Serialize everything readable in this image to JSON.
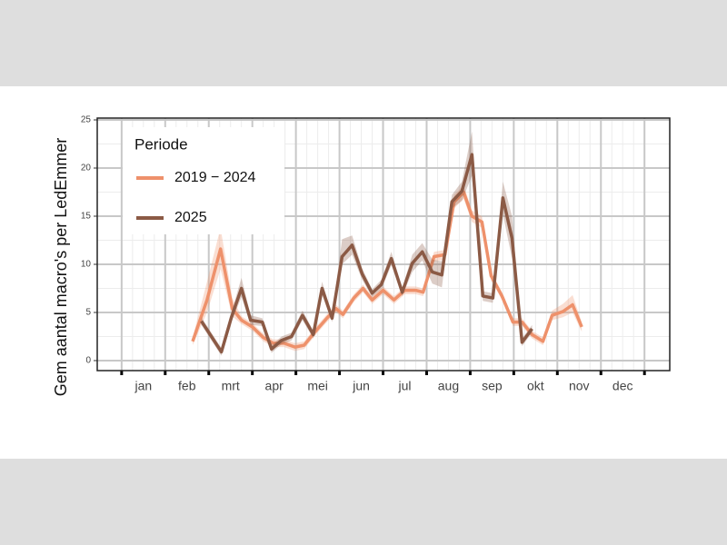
{
  "chart_data": {
    "type": "line",
    "ylabel": "Gem aantal macro's per LedEmmer",
    "legend_title": "Periode",
    "legend": "top-left",
    "grid": true,
    "categories": [
      "jan",
      "feb",
      "mrt",
      "apr",
      "mei",
      "jun",
      "jul",
      "aug",
      "sep",
      "okt",
      "nov",
      "dec"
    ],
    "xlim": [
      -0.56,
      12.58
    ],
    "xticks": [
      0,
      1,
      2,
      3,
      4,
      5,
      6,
      7,
      8,
      9,
      10,
      11,
      12
    ],
    "ylim": [
      -1.04,
      25.19
    ],
    "yticks": [
      0,
      5,
      10,
      15,
      20,
      25
    ],
    "series": [
      {
        "name": "2019 − 2024",
        "color": "#ee916b",
        "x": [
          1.63,
          1.96,
          2.27,
          2.54,
          2.75,
          3.0,
          3.25,
          3.48,
          3.73,
          3.98,
          4.19,
          4.44,
          4.71,
          4.92,
          5.08,
          5.33,
          5.54,
          5.75,
          6.0,
          6.25,
          6.5,
          6.75,
          6.92,
          7.17,
          7.42,
          7.63,
          7.85,
          8.04,
          8.27,
          8.48,
          8.73,
          8.98,
          9.19,
          9.42,
          9.67,
          9.88,
          10.13,
          10.35,
          10.56
        ],
        "values": [
          2.0,
          6.3,
          11.6,
          5.4,
          4.2,
          3.5,
          2.4,
          1.8,
          1.8,
          1.4,
          1.6,
          3.0,
          4.4,
          5.4,
          4.8,
          6.5,
          7.5,
          6.3,
          7.3,
          6.3,
          7.3,
          7.3,
          7.1,
          10.8,
          11.0,
          16.5,
          17.5,
          15.0,
          14.4,
          8.8,
          6.7,
          4.0,
          4.0,
          2.7,
          2.0,
          4.7,
          5.1,
          5.8,
          3.5
        ],
        "lower": [
          1.6,
          5.0,
          9.5,
          4.6,
          3.8,
          3.1,
          2.0,
          1.4,
          1.4,
          1.0,
          1.2,
          2.6,
          4.0,
          5.0,
          4.4,
          6.1,
          7.1,
          5.9,
          6.9,
          5.9,
          6.9,
          6.9,
          6.7,
          10.3,
          10.5,
          15.8,
          16.8,
          14.4,
          13.8,
          8.3,
          6.3,
          3.6,
          3.6,
          2.3,
          1.6,
          4.2,
          4.5,
          5.0,
          3.0
        ],
        "upper": [
          2.4,
          8.2,
          13.8,
          6.5,
          4.6,
          3.9,
          2.8,
          2.2,
          2.2,
          1.8,
          2.0,
          3.4,
          4.8,
          5.8,
          5.2,
          6.9,
          7.9,
          6.7,
          7.7,
          6.7,
          7.7,
          7.7,
          7.5,
          11.3,
          11.5,
          17.2,
          18.2,
          15.6,
          15.0,
          9.3,
          7.1,
          4.4,
          4.4,
          3.1,
          2.4,
          5.2,
          5.9,
          6.8,
          4.0
        ]
      },
      {
        "name": "2025",
        "color": "#8b5a45",
        "x": [
          1.83,
          2.06,
          2.29,
          2.52,
          2.75,
          2.96,
          3.23,
          3.44,
          3.67,
          3.9,
          4.15,
          4.4,
          4.6,
          4.83,
          5.06,
          5.29,
          5.52,
          5.75,
          5.96,
          6.19,
          6.44,
          6.67,
          6.9,
          7.13,
          7.35,
          7.58,
          7.81,
          8.04,
          8.29,
          8.52,
          8.75,
          8.96,
          9.19,
          9.42
        ],
        "values": [
          4.1,
          2.5,
          0.9,
          4.5,
          7.5,
          4.2,
          4.0,
          1.2,
          2.1,
          2.5,
          4.7,
          2.7,
          7.5,
          4.4,
          10.8,
          12.0,
          9.0,
          7.0,
          7.9,
          10.6,
          7.1,
          10.1,
          11.3,
          9.2,
          8.9,
          16.5,
          17.6,
          21.4,
          6.7,
          6.5,
          16.9,
          12.7,
          1.9,
          3.3
        ],
        "lower": [
          3.7,
          2.1,
          0.5,
          4.0,
          6.6,
          3.7,
          3.6,
          0.8,
          1.7,
          2.1,
          4.2,
          2.3,
          6.8,
          4.0,
          10.0,
          11.0,
          8.4,
          6.6,
          7.4,
          9.9,
          6.7,
          9.2,
          10.4,
          8.0,
          7.6,
          15.8,
          16.6,
          19.2,
          6.2,
          6.0,
          15.2,
          10.6,
          1.5,
          2.9
        ],
        "upper": [
          4.5,
          2.9,
          1.3,
          5.0,
          8.6,
          4.7,
          4.4,
          1.6,
          2.5,
          2.9,
          5.2,
          3.1,
          8.2,
          4.8,
          12.6,
          13.0,
          9.6,
          7.4,
          8.4,
          11.3,
          7.5,
          11.0,
          12.2,
          10.5,
          10.3,
          17.2,
          18.6,
          23.8,
          7.2,
          7.0,
          18.6,
          15.0,
          2.3,
          3.7
        ]
      }
    ]
  }
}
